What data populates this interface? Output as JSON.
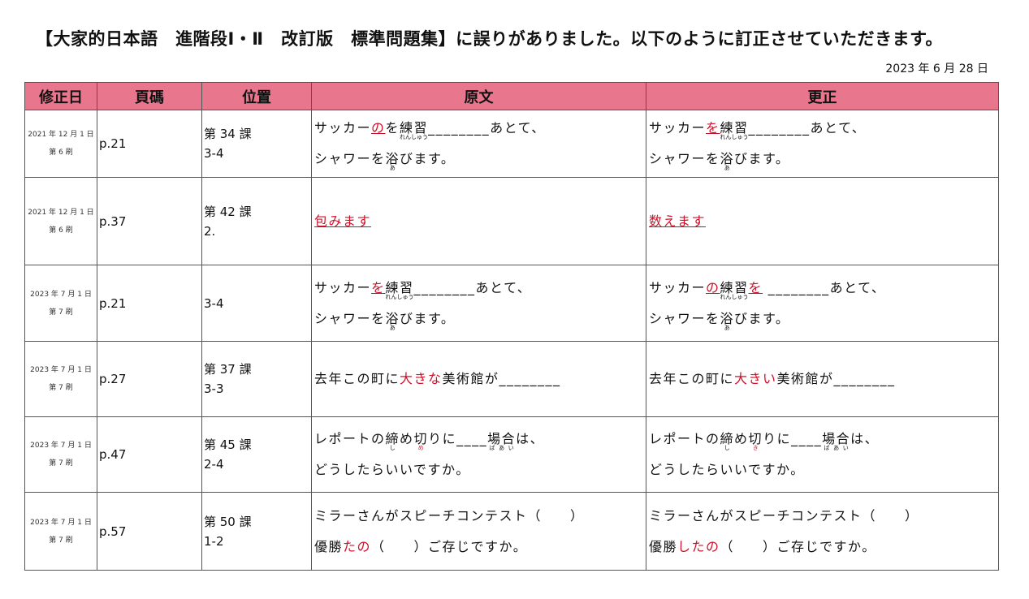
{
  "title": "【大家的日本語　進階段Ⅰ・Ⅱ　改訂版　標準問題集】に誤りがありました。以下のように訂正させていただきます。",
  "date": "2023 年 6 月 28 日",
  "colors": {
    "header_bg": "#e8768c",
    "highlight": "#d0102a"
  },
  "headers": [
    "修正日",
    "頁碼",
    "位置",
    "原文",
    "更正"
  ],
  "rows": [
    {
      "date": "2021 年 12 月 1 日",
      "print": "第 6 刷",
      "page": "p.21",
      "pos": [
        "第 34 課",
        "3-4"
      ],
      "orig": [
        [
          {
            "t": "サッカー"
          },
          {
            "t": "の",
            "red": true,
            "u": true
          },
          {
            "t": "を"
          },
          {
            "t": "練習",
            "r": "れんしゅう"
          },
          {
            "t": "________あとて、"
          }
        ],
        [
          {
            "t": "シャワーを"
          },
          {
            "t": "浴",
            "r": "あ"
          },
          {
            "t": "びます。"
          }
        ]
      ],
      "corr": [
        [
          {
            "t": "サッカー"
          },
          {
            "t": "を",
            "red": true,
            "u": true
          },
          {
            "t": "練習",
            "r": "れんしゅう"
          },
          {
            "t": "________あとて、"
          }
        ],
        [
          {
            "t": "シャワーを"
          },
          {
            "t": "浴",
            "r": "あ"
          },
          {
            "t": "びます。"
          }
        ]
      ]
    },
    {
      "date": "2021 年 12 月 1 日",
      "print": "第 6 刷",
      "page": "p.37",
      "pos": [
        "第 42 課",
        "2."
      ],
      "orig": [
        [
          {
            "t": "包みます",
            "red": true,
            "u": true
          }
        ]
      ],
      "corr": [
        [
          {
            "t": "数えます",
            "red": true,
            "u": true
          }
        ]
      ]
    },
    {
      "date": "2023 年 7 月 1 日",
      "print": "第 7 刷",
      "page": "p.21",
      "pos": [
        "3-4"
      ],
      "orig": [
        [
          {
            "t": "サッカー"
          },
          {
            "t": "を",
            "red": true,
            "u": true
          },
          {
            "t": "練習",
            "r": "れんしゅう"
          },
          {
            "t": "________あとて、"
          }
        ],
        [
          {
            "t": "シャワーを"
          },
          {
            "t": "浴",
            "r": "あ"
          },
          {
            "t": "びます。"
          }
        ]
      ],
      "corr": [
        [
          {
            "t": "サッカー"
          },
          {
            "t": "の",
            "red": true,
            "u": true
          },
          {
            "t": "練習",
            "r": "れんしゅう"
          },
          {
            "t": "を",
            "red": true,
            "u": true
          },
          {
            "t": " ________あとて、"
          }
        ],
        [
          {
            "t": "シャワーを"
          },
          {
            "t": "浴",
            "r": "あ"
          },
          {
            "t": "びます。"
          }
        ]
      ]
    },
    {
      "date": "2023 年 7 月 1 日",
      "print": "第 7 刷",
      "page": "p.27",
      "pos": [
        "第 37 課",
        "3-3"
      ],
      "orig": [
        [
          {
            "t": "去年この町に"
          },
          {
            "t": "大きな",
            "red": true
          },
          {
            "t": "美術館が________"
          }
        ]
      ],
      "corr": [
        [
          {
            "t": "去年この町に"
          },
          {
            "t": "大きい",
            "red": true
          },
          {
            "t": "美術館が________"
          }
        ]
      ]
    },
    {
      "date": "2023 年 7 月 1 日",
      "print": "第 7 刷",
      "page": "p.47",
      "pos": [
        "第 45 課",
        "2-4"
      ],
      "orig": [
        [
          {
            "t": "レポートの"
          },
          {
            "t": "締",
            "r": "し"
          },
          {
            "t": "め"
          },
          {
            "t": "切",
            "r": "め",
            "rred": true
          },
          {
            "t": "りに____"
          },
          {
            "t": "場合",
            "r": "ばあい"
          },
          {
            "t": "は、"
          }
        ],
        [
          {
            "t": "どうしたらいいですか。"
          }
        ]
      ],
      "corr": [
        [
          {
            "t": "レポートの"
          },
          {
            "t": "締",
            "r": "し"
          },
          {
            "t": "め"
          },
          {
            "t": "切",
            "r": "き",
            "rred": true
          },
          {
            "t": "りに____"
          },
          {
            "t": "場合",
            "r": "ばあい"
          },
          {
            "t": "は、"
          }
        ],
        [
          {
            "t": "どうしたらいいですか。"
          }
        ]
      ]
    },
    {
      "date": "2023 年 7 月 1 日",
      "print": "第 7 刷",
      "page": "p.57",
      "pos": [
        "第 50 課",
        "1-2"
      ],
      "orig": [
        [
          {
            "t": "ミラーさんがスピーチコンテスト（　　）"
          }
        ],
        [
          {
            "t": "優勝"
          },
          {
            "t": "たの",
            "red": true
          },
          {
            "t": "（　　）ご存じですか。"
          }
        ]
      ],
      "corr": [
        [
          {
            "t": "ミラーさんがスピーチコンテスト（　　）"
          }
        ],
        [
          {
            "t": "優勝"
          },
          {
            "t": "したの",
            "red": true
          },
          {
            "t": "（　　）ご存じですか。"
          }
        ]
      ]
    }
  ]
}
